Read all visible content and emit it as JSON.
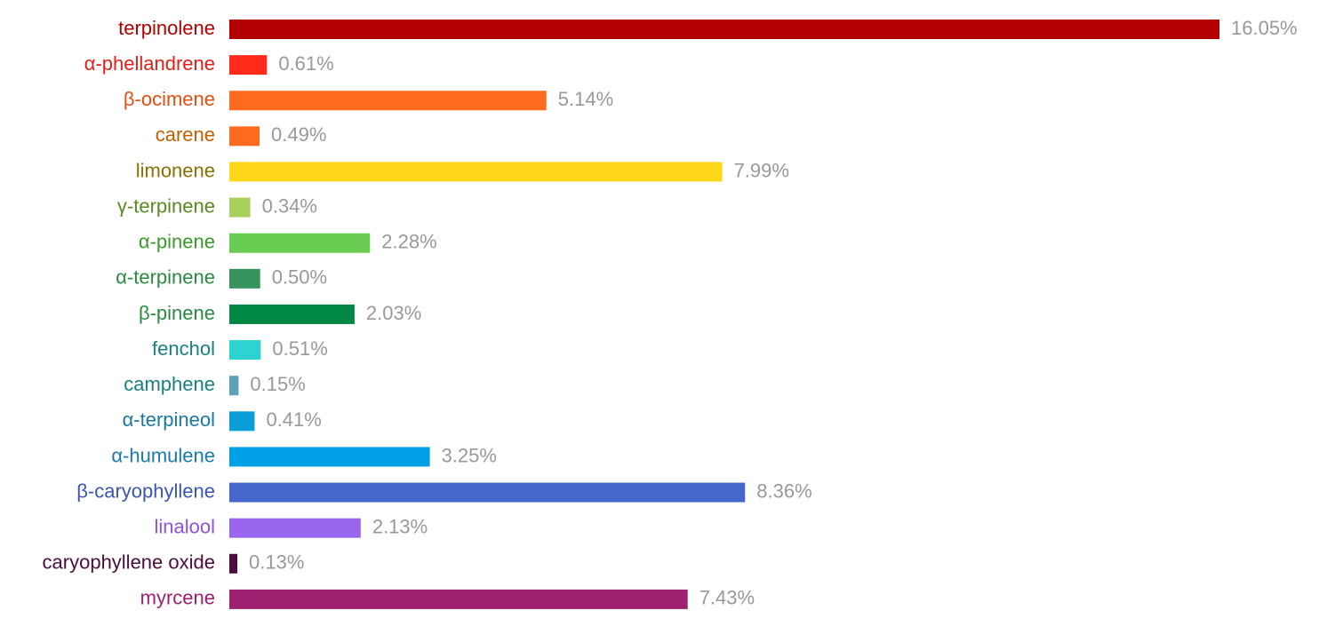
{
  "chart_data": {
    "type": "barh",
    "categories": [
      "terpinolene",
      "α-phellandrene",
      "β-ocimene",
      "carene",
      "limonene",
      "γ-terpinene",
      "α-pinene",
      "α-terpinene",
      "β-pinene",
      "fenchol",
      "camphene",
      "α-terpineol",
      "α-humulene",
      "β-caryophyllene",
      "linalool",
      "caryophyllene oxide",
      "myrcene"
    ],
    "values": [
      16.05,
      0.61,
      5.14,
      0.49,
      7.99,
      0.34,
      2.28,
      0.5,
      2.03,
      0.51,
      0.15,
      0.41,
      3.25,
      8.36,
      2.13,
      0.13,
      7.43
    ],
    "value_labels": [
      "16.05%",
      "0.61%",
      "5.14%",
      "0.49%",
      "7.99%",
      "0.34%",
      "2.28%",
      "0.50%",
      "2.03%",
      "0.51%",
      "0.15%",
      "0.41%",
      "3.25%",
      "8.36%",
      "2.13%",
      "0.13%",
      "7.43%"
    ],
    "colors": [
      "#b20000",
      "#ff2a1a",
      "#ff6a21",
      "#ff6a21",
      "#ffd71a",
      "#a8d05a",
      "#68cc52",
      "#36935e",
      "#008744",
      "#2dd3d3",
      "#5ea0b8",
      "#0a9ed6",
      "#00a0e6",
      "#4766cc",
      "#9966ee",
      "#4a0d3e",
      "#9e2070"
    ],
    "label_colors": [
      "#b20000",
      "#e0201a",
      "#e05010",
      "#c06000",
      "#8a7000",
      "#5a8a20",
      "#3a9a2a",
      "#2a8a40",
      "#2a8a40",
      "#1a8080",
      "#1a8080",
      "#1a7aa0",
      "#1a7ab0",
      "#3a55b5",
      "#9050e0",
      "#4a0d3e",
      "#9e2070"
    ]
  }
}
